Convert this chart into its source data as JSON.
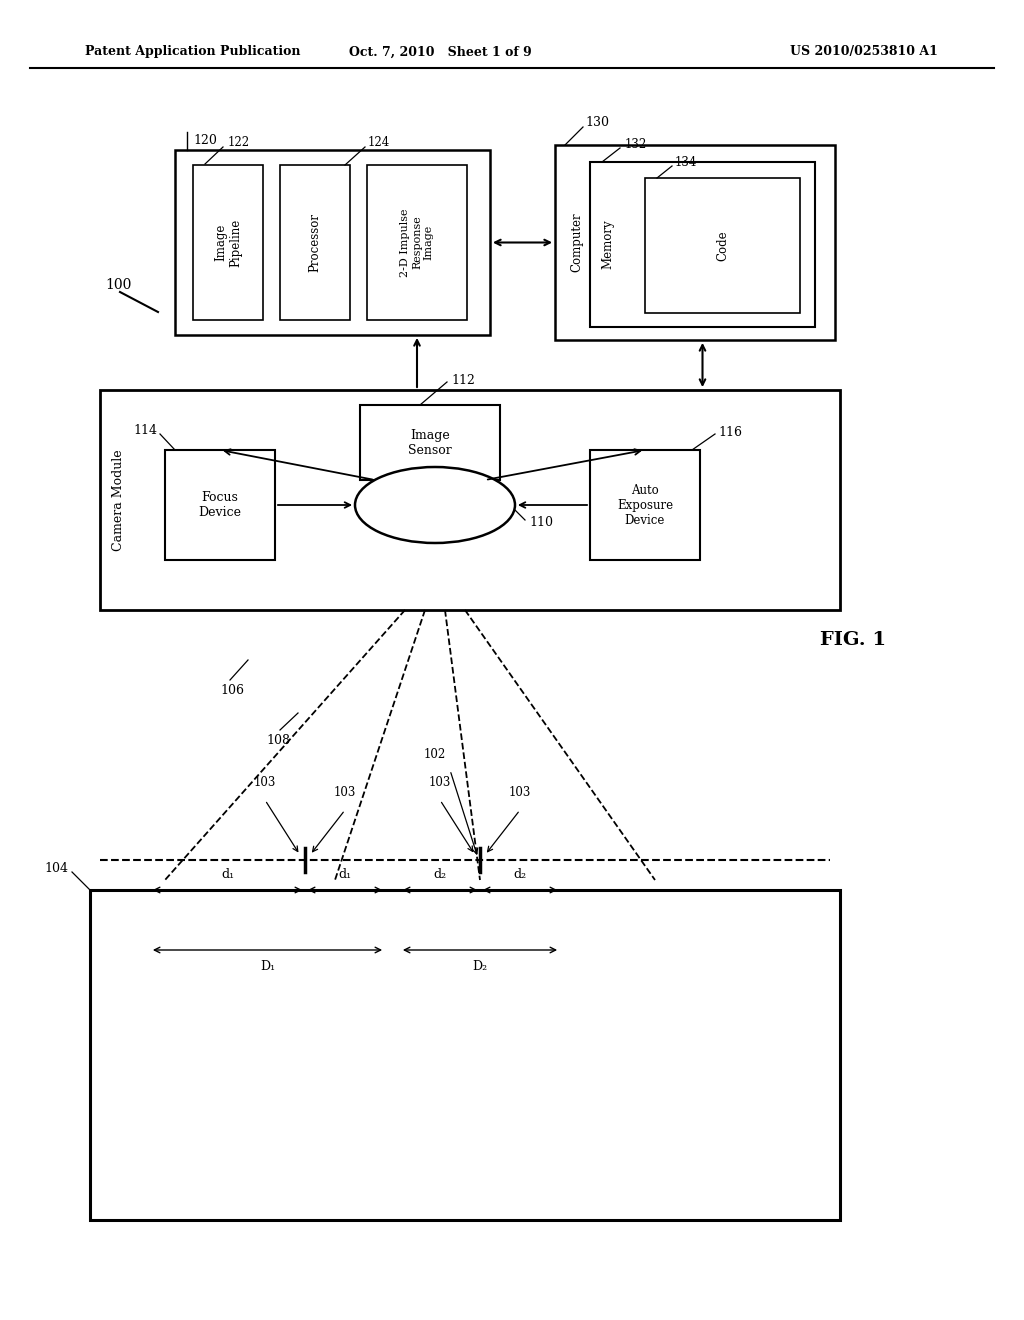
{
  "header_left": "Patent Application Publication",
  "header_center": "Oct. 7, 2010   Sheet 1 of 9",
  "header_right": "US 2010/0253810 A1",
  "bg_color": "#ffffff",
  "lc": "#000000"
}
